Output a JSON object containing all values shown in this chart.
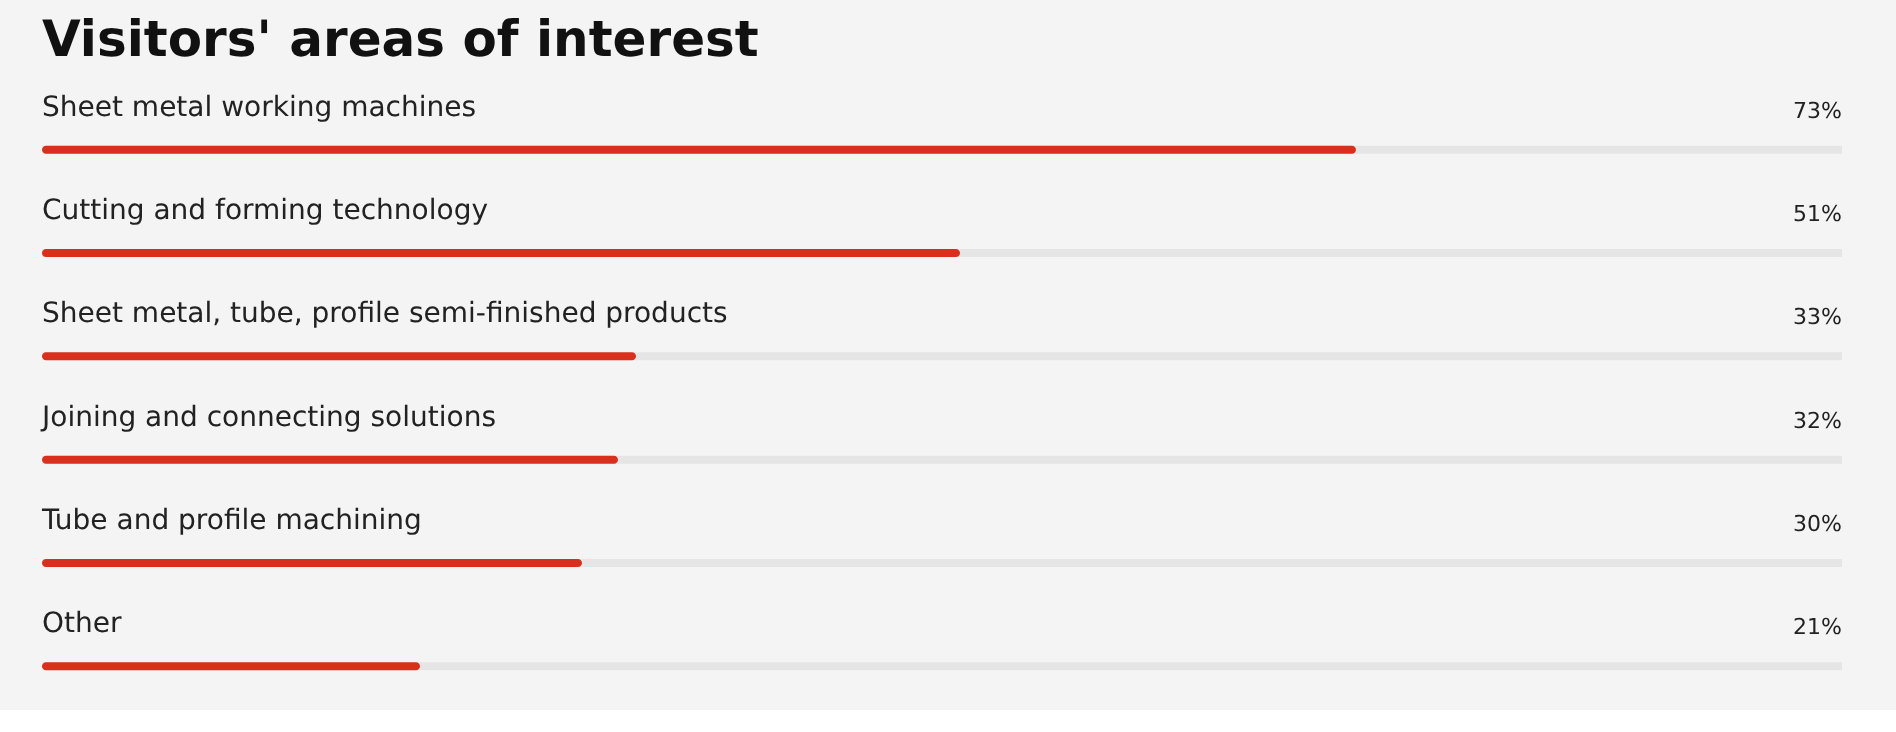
{
  "chart_data": {
    "type": "bar",
    "orientation": "horizontal",
    "title": "Visitors' areas of interest",
    "categories": [
      "Sheet metal working machines",
      "Cutting and forming technology",
      "Sheet metal, tube, profile semi-finished products",
      "Joining and connecting solutions",
      "Tube and profile machining",
      "Other"
    ],
    "values": [
      73,
      51,
      33,
      32,
      30,
      21
    ],
    "value_labels": [
      "73%",
      "51%",
      "33%",
      "32%",
      "30%",
      "21%"
    ],
    "color": "#d9301e",
    "xlim": [
      0,
      100
    ],
    "tick_labels": false
  }
}
